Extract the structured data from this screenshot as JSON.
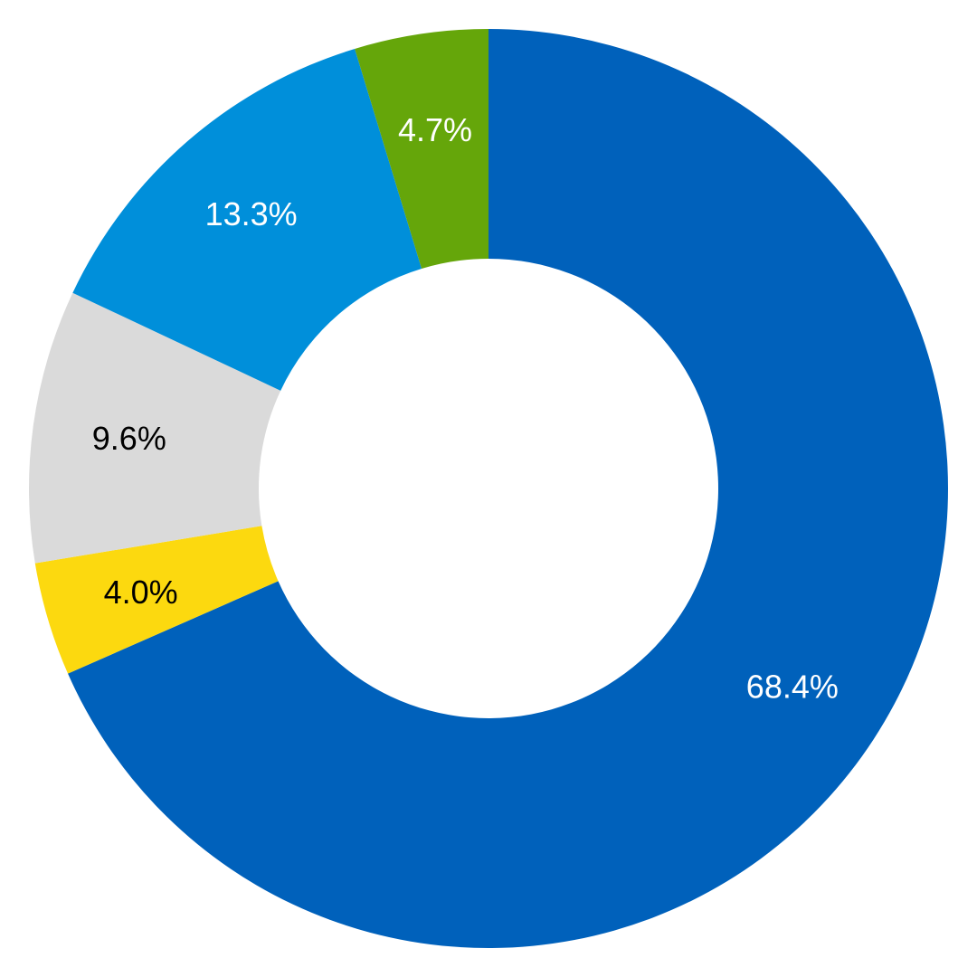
{
  "chart_data": {
    "type": "pie",
    "variant": "donut",
    "title": "",
    "start": "top",
    "direction": "clockwise",
    "slices": [
      {
        "label": "68.4%",
        "value": 68.4,
        "color": "#0061BB",
        "label_color": "#ffffff"
      },
      {
        "label": "4.0%",
        "value": 4.0,
        "color": "#FCD90F",
        "label_color": "#000000"
      },
      {
        "label": "9.6%",
        "value": 9.6,
        "color": "#DADADA",
        "label_color": "#000000"
      },
      {
        "label": "13.3%",
        "value": 13.3,
        "color": "#008FDA",
        "label_color": "#ffffff"
      },
      {
        "label": "4.7%",
        "value": 4.7,
        "color": "#65A60A",
        "label_color": "#ffffff"
      }
    ]
  }
}
